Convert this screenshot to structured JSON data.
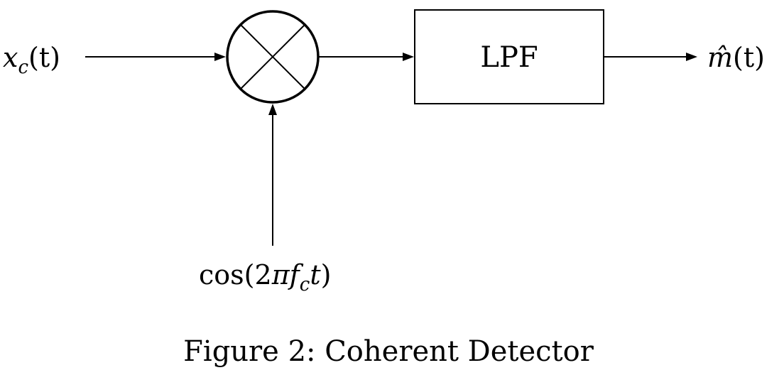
{
  "diagram": {
    "input": {
      "symbol": "x",
      "subscript": "c",
      "argument": "(t)"
    },
    "mixer": {
      "name": "multiplier"
    },
    "oscillator": {
      "function": "cos",
      "open": "(2",
      "pi": "π",
      "symbol": "f",
      "subscript": "c",
      "variable": "t",
      "close": ")"
    },
    "filter": {
      "label": "LPF"
    },
    "output": {
      "symbol": "m̂",
      "argument": "(t)"
    },
    "caption": "Figure 2: Coherent Detector"
  }
}
